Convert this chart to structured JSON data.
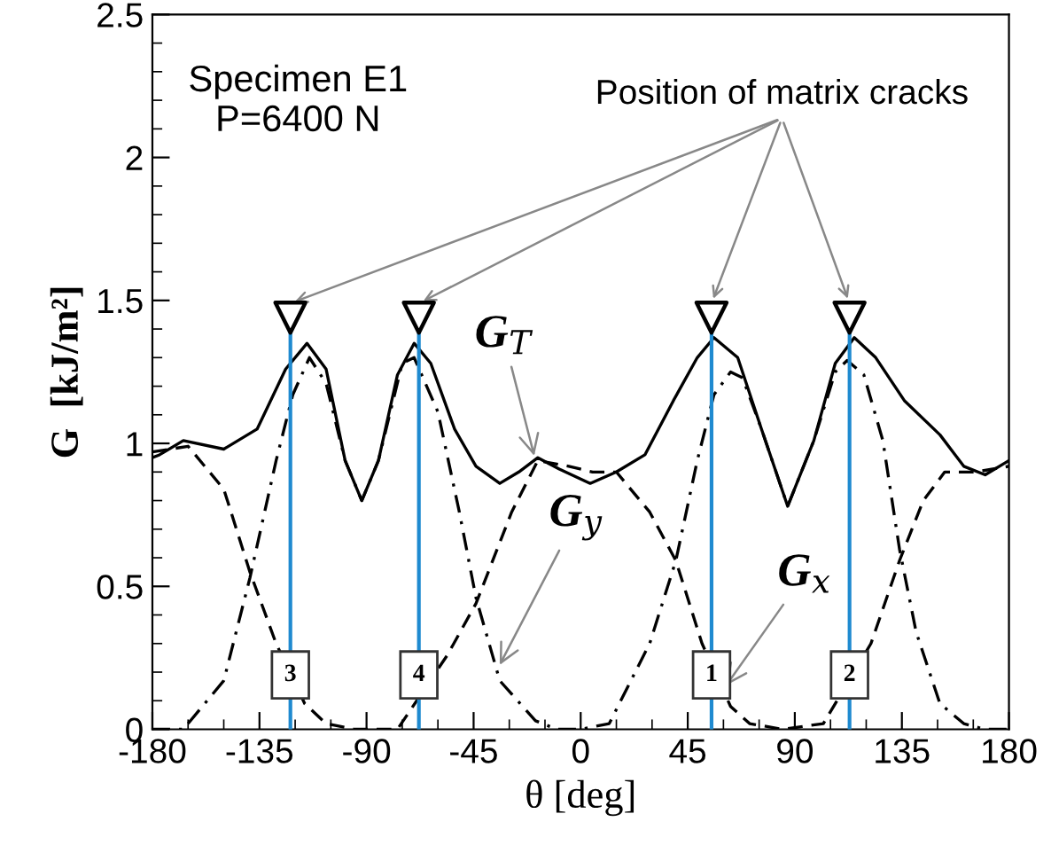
{
  "chart_data": {
    "type": "line",
    "xlabel": "θ [deg]",
    "ylabel": "G  [kJ/m²]",
    "xlim": [
      -180,
      180
    ],
    "ylim": [
      0,
      2.5
    ],
    "xticks": [
      -180,
      {
        "value": -165,
        "label": null
      },
      {
        "value": -150,
        "label": null
      },
      -135,
      {
        "value": -120,
        "label": null
      },
      {
        "value": -105,
        "label": null
      },
      -90,
      {
        "value": -75,
        "label": null
      },
      {
        "value": -60,
        "label": null
      },
      -45,
      {
        "value": -30,
        "label": null
      },
      {
        "value": -15,
        "label": null
      },
      0,
      {
        "value": 15,
        "label": null
      },
      {
        "value": 30,
        "label": null
      },
      45,
      {
        "value": 60,
        "label": null
      },
      {
        "value": 75,
        "label": null
      },
      90,
      {
        "value": 105,
        "label": null
      },
      {
        "value": 120,
        "label": null
      },
      135,
      {
        "value": 150,
        "label": null
      },
      {
        "value": 165,
        "label": null
      },
      180
    ],
    "yticks": [
      0,
      {
        "value": 0.1,
        "label": null
      },
      {
        "value": 0.2,
        "label": null
      },
      {
        "value": 0.3,
        "label": null
      },
      {
        "value": 0.4,
        "label": null
      },
      0.5,
      {
        "value": 0.6,
        "label": null
      },
      {
        "value": 0.7,
        "label": null
      },
      {
        "value": 0.8,
        "label": null
      },
      {
        "value": 0.9,
        "label": null
      },
      1,
      {
        "value": 1.1,
        "label": null
      },
      {
        "value": 1.2,
        "label": null
      },
      {
        "value": 1.3,
        "label": null
      },
      {
        "value": 1.4,
        "label": null
      },
      1.5,
      {
        "value": 1.6,
        "label": null
      },
      {
        "value": 1.7,
        "label": null
      },
      {
        "value": 1.8,
        "label": null
      },
      {
        "value": 1.9,
        "label": null
      },
      2,
      {
        "value": 2.1,
        "label": null
      },
      {
        "value": 2.2,
        "label": null
      },
      {
        "value": 2.3,
        "label": null
      },
      {
        "value": 2.4,
        "label": null
      },
      2.5
    ],
    "grid": false,
    "legend": false,
    "marker": "none",
    "series": [
      {
        "color": "#000000",
        "line_style": "solid",
        "x": [
          -180,
          -177,
          -167,
          -150,
          -136,
          -124,
          -115,
          -107,
          -99,
          -92,
          -85,
          -77,
          -70,
          -63,
          -53,
          -44,
          -34,
          -26,
          -18,
          -9,
          4,
          15,
          27,
          39,
          49,
          56,
          66,
          76,
          87,
          98,
          107,
          115,
          124,
          136,
          151,
          161,
          170,
          178,
          180
        ],
        "values": [
          0.95,
          0.96,
          1.01,
          0.98,
          1.05,
          1.26,
          1.35,
          1.26,
          0.94,
          0.8,
          0.94,
          1.24,
          1.35,
          1.28,
          1.05,
          0.92,
          0.86,
          0.9,
          0.95,
          0.91,
          0.86,
          0.9,
          0.96,
          1.15,
          1.3,
          1.37,
          1.3,
          1.05,
          0.78,
          1.01,
          1.28,
          1.37,
          1.3,
          1.15,
          1.03,
          0.92,
          0.89,
          0.93,
          0.94
        ]
      },
      {
        "color": "#000000",
        "line_style": "dashed",
        "x": [
          -180,
          -165,
          -150,
          -139,
          -128,
          -116,
          -107,
          -95,
          -77,
          -56,
          -44,
          -29,
          -18,
          -5,
          5,
          15,
          29,
          40,
          51,
          63,
          71,
          85,
          102,
          122,
          134,
          144,
          153,
          166,
          180
        ],
        "values": [
          0.97,
          0.99,
          0.84,
          0.55,
          0.3,
          0.09,
          0.02,
          0,
          0,
          0.26,
          0.44,
          0.76,
          0.94,
          0.92,
          0.9,
          0.9,
          0.76,
          0.59,
          0.3,
          0.08,
          0.02,
          0,
          0.02,
          0.3,
          0.59,
          0.8,
          0.9,
          0.9,
          0.92
        ]
      },
      {
        "color": "#000000",
        "line_style": "dashdot",
        "x": [
          -180,
          -167,
          -150,
          -139,
          -128,
          -121,
          -114,
          -107,
          -99,
          -92,
          -85,
          -75,
          -70,
          -60,
          -51,
          -44,
          -34,
          -19,
          -10,
          0,
          12,
          29,
          40,
          49,
          56,
          63,
          68,
          76,
          87,
          98,
          107,
          112,
          119,
          127,
          134,
          141,
          151,
          161,
          170,
          180
        ],
        "values": [
          0,
          0,
          0.17,
          0.53,
          0.94,
          1.17,
          1.3,
          1.21,
          0.94,
          0.8,
          0.94,
          1.28,
          1.3,
          1.11,
          0.76,
          0.46,
          0.17,
          0.03,
          0,
          0,
          0.02,
          0.3,
          0.59,
          0.94,
          1.17,
          1.25,
          1.23,
          1.05,
          0.78,
          1.01,
          1.25,
          1.29,
          1.24,
          1.01,
          0.63,
          0.34,
          0.09,
          0.02,
          0,
          0
        ]
      },
      {
        "type": "scatter",
        "marker": "triangle",
        "color": "#000000",
        "x": [
          -122,
          -68,
          55,
          113
        ],
        "values": [
          1.44,
          1.44,
          1.44,
          1.44
        ]
      }
    ],
    "ref_lines": [
      {
        "axis": "x",
        "value": -122,
        "color": "#1f8ad0"
      },
      {
        "axis": "x",
        "value": -68,
        "color": "#1f8ad0"
      },
      {
        "axis": "x",
        "value": 55,
        "color": "#1f8ad0"
      },
      {
        "axis": "x",
        "value": 113,
        "color": "#1f8ad0"
      }
    ],
    "annotations": [
      "Specimen E1\nP=6400 N",
      {
        "text": "Position of matrix cracks",
        "x": -122,
        "y": 1.49
      },
      {
        "text": "G$_{T}$",
        "x": -19,
        "y": 0.94
      },
      {
        "text": "G$_{y}$",
        "x": -35,
        "y": 0.21
      },
      {
        "text": "G$_{x}$",
        "x": 60,
        "y": 0.14
      },
      {
        "text": "3",
        "x": -122,
        "y": 0.19
      },
      {
        "text": "4",
        "x": -68,
        "y": 0.19
      },
      {
        "text": "1",
        "x": 55,
        "y": 0.19
      },
      {
        "text": "2",
        "x": 113,
        "y": 0.19
      }
    ]
  }
}
